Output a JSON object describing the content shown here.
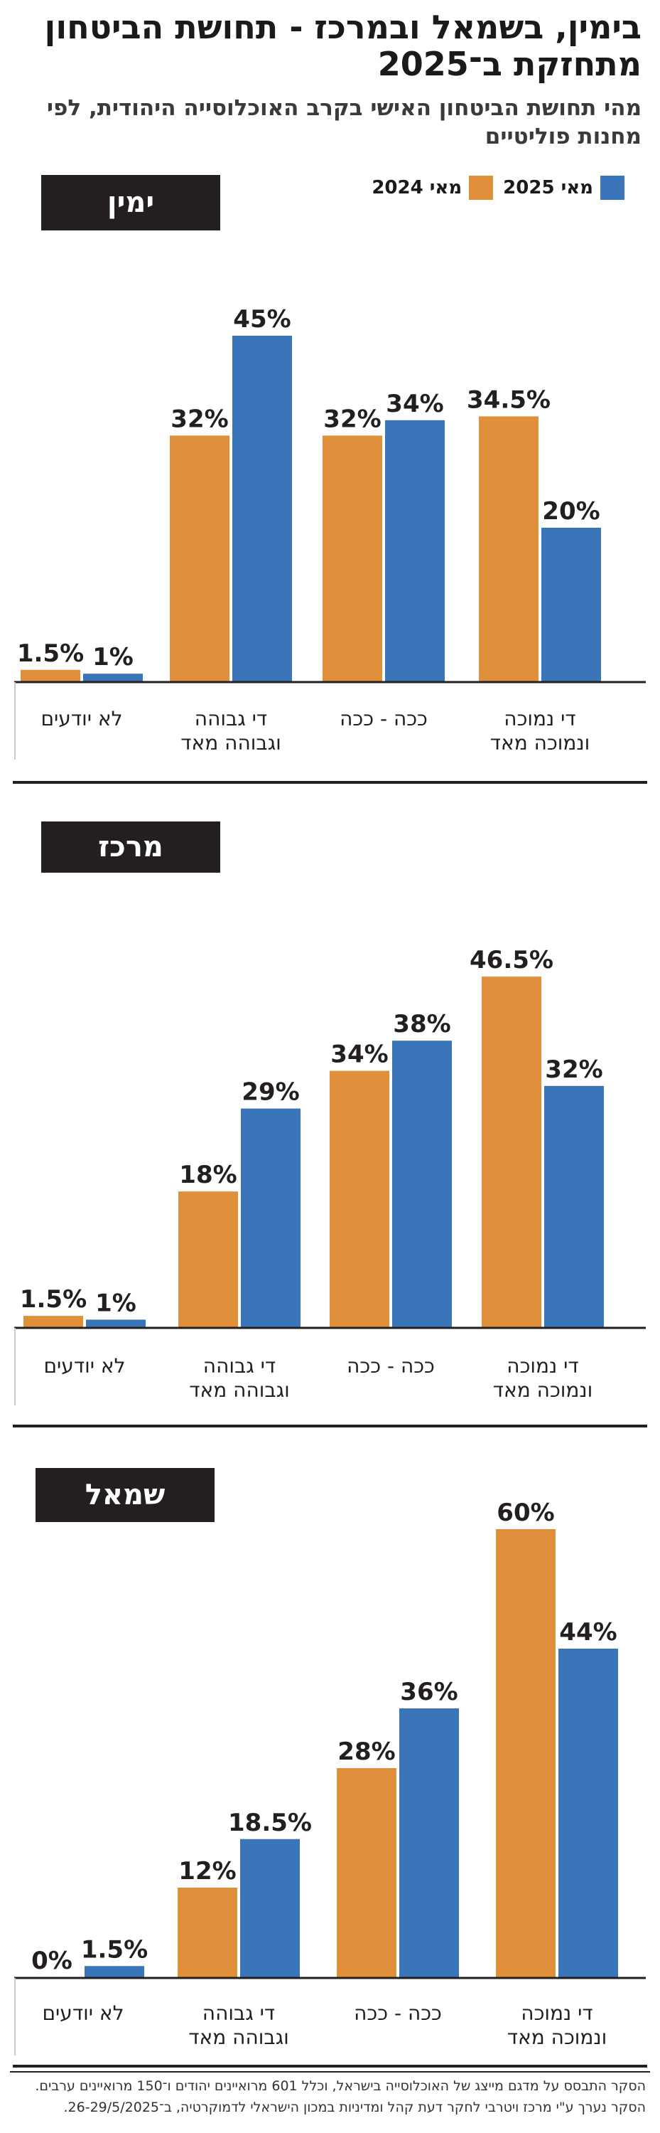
{
  "header": {
    "title": "בימין, בשמאל ובמרכז - תחושת הביטחון מתחזקת ב־2025",
    "subtitle": "מהי תחושת הביטחון האישי בקרב האוכלוסייה היהודית, לפי מחנות פוליטיים"
  },
  "legend": {
    "items": [
      {
        "label": "מאי 2025",
        "color": "#3a74b9"
      },
      {
        "label": "מאי 2024",
        "color": "#e08f3b"
      }
    ]
  },
  "colors": {
    "s2024": "#e08f3b",
    "s2025": "#3a74b9",
    "axis": "#231f20",
    "badge": "#231f20"
  },
  "chart_data": [
    {
      "type": "bar",
      "panel_label": "ימין",
      "categories": [
        "די נמוכה ונמוכה מאד",
        "ככה - ככה",
        "די גבוהה וגבוהה מאד",
        "לא יודעים"
      ],
      "series": [
        {
          "name": "מאי 2024",
          "values": [
            34.5,
            32,
            32,
            1.5
          ],
          "labels": [
            "34.5%",
            "32%",
            "32%",
            "1.5%"
          ]
        },
        {
          "name": "מאי 2025",
          "values": [
            20,
            34,
            45,
            1
          ],
          "labels": [
            "20%",
            "34%",
            "45%",
            "1%"
          ]
        }
      ],
      "ylim": [
        0,
        50
      ]
    },
    {
      "type": "bar",
      "panel_label": "מרכז",
      "categories": [
        "די נמוכה ונמוכה מאד",
        "ככה - ככה",
        "די גבוהה וגבוהה מאד",
        "לא יודעים"
      ],
      "series": [
        {
          "name": "מאי 2024",
          "values": [
            46.5,
            34,
            18,
            1.5
          ],
          "labels": [
            "46.5%",
            "34%",
            "18%",
            "1.5%"
          ]
        },
        {
          "name": "מאי 2025",
          "values": [
            32,
            38,
            29,
            1
          ],
          "labels": [
            "32%",
            "38%",
            "29%",
            "1%"
          ]
        }
      ],
      "ylim": [
        0,
        50
      ]
    },
    {
      "type": "bar",
      "panel_label": "שמאל",
      "categories": [
        "די נמוכה ונמוכה מאד",
        "ככה - ככה",
        "די גבוהה וגבוהה מאד",
        "לא יודעים"
      ],
      "series": [
        {
          "name": "מאי 2024",
          "values": [
            60,
            28,
            12,
            0
          ],
          "labels": [
            "60%",
            "28%",
            "12%",
            "0%"
          ]
        },
        {
          "name": "מאי 2025",
          "values": [
            44,
            36,
            18.5,
            1.5
          ],
          "labels": [
            "44%",
            "36%",
            "18.5%",
            "1.5%"
          ]
        }
      ],
      "ylim": [
        0,
        60
      ]
    }
  ],
  "footer": {
    "note": "הסקר התבסס על מדגם מייצג של האוכלוסייה בישראל, וכלל 601 מרואיינים יהודים ו־150 מרואיינים ערבים. הסקר נערך ע\"י מרכז ויטרבי לחקר דעת קהל ומדיניות במכון הישראלי לדמוקרטיה, ב־26-29/5/2025."
  }
}
